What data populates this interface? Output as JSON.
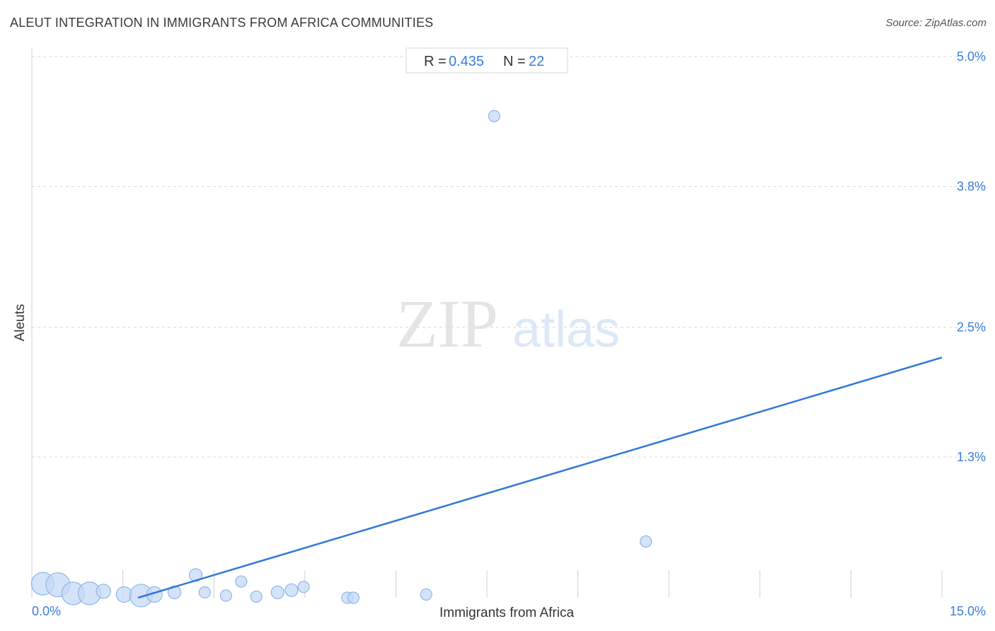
{
  "header": {
    "title": "ALEUT INTEGRATION IN IMMIGRANTS FROM AFRICA COMMUNITIES",
    "source": "Source: ZipAtlas.com"
  },
  "stats": {
    "r_label": "R =",
    "r_value": "0.435",
    "n_label": "N =",
    "n_value": "22"
  },
  "watermark": {
    "zip": "ZIP",
    "atlas": "atlas"
  },
  "colors": {
    "accent": "#3b7dd8",
    "point_fill": "#c6daf5",
    "point_stroke": "#8fb5e8",
    "line": "#2f78d6",
    "grid": "#d9d9d9"
  },
  "chart_data": {
    "type": "scatter",
    "title": "ALEUT INTEGRATION IN IMMIGRANTS FROM AFRICA COMMUNITIES",
    "xlabel": "Immigrants from Africa",
    "ylabel": "Aleuts",
    "xlim": [
      0,
      15
    ],
    "ylim": [
      0,
      5.0
    ],
    "x_tick_labels": [
      {
        "value": 0,
        "label": "0.0%"
      },
      {
        "value": 15,
        "label": "15.0%"
      }
    ],
    "y_tick_labels": [
      {
        "value": 1.3,
        "label": "1.3%"
      },
      {
        "value": 2.5,
        "label": "2.5%"
      },
      {
        "value": 3.8,
        "label": "3.8%"
      },
      {
        "value": 5.0,
        "label": "5.0%"
      }
    ],
    "grid": true,
    "points": [
      {
        "x": 0.18,
        "y": 0.13,
        "size": 16
      },
      {
        "x": 0.43,
        "y": 0.12,
        "size": 17
      },
      {
        "x": 0.68,
        "y": 0.04,
        "size": 16
      },
      {
        "x": 0.95,
        "y": 0.04,
        "size": 16
      },
      {
        "x": 1.18,
        "y": 0.06,
        "size": 10
      },
      {
        "x": 1.52,
        "y": 0.03,
        "size": 11
      },
      {
        "x": 1.8,
        "y": 0.02,
        "size": 16
      },
      {
        "x": 2.02,
        "y": 0.03,
        "size": 11
      },
      {
        "x": 2.35,
        "y": 0.05,
        "size": 9
      },
      {
        "x": 2.7,
        "y": 0.21,
        "size": 9
      },
      {
        "x": 2.85,
        "y": 0.05,
        "size": 8
      },
      {
        "x": 3.2,
        "y": 0.02,
        "size": 8
      },
      {
        "x": 3.45,
        "y": 0.15,
        "size": 8
      },
      {
        "x": 3.7,
        "y": 0.01,
        "size": 8
      },
      {
        "x": 4.05,
        "y": 0.05,
        "size": 9
      },
      {
        "x": 4.28,
        "y": 0.07,
        "size": 9
      },
      {
        "x": 4.48,
        "y": 0.1,
        "size": 8
      },
      {
        "x": 5.2,
        "y": 0.0,
        "size": 8
      },
      {
        "x": 5.3,
        "y": 0.0,
        "size": 8
      },
      {
        "x": 6.5,
        "y": 0.03,
        "size": 8
      },
      {
        "x": 7.62,
        "y": 4.45,
        "size": 8
      },
      {
        "x": 10.12,
        "y": 0.52,
        "size": 8
      }
    ],
    "trendline": {
      "x": [
        1.75,
        15.0
      ],
      "y": [
        0.0,
        2.22
      ]
    }
  }
}
